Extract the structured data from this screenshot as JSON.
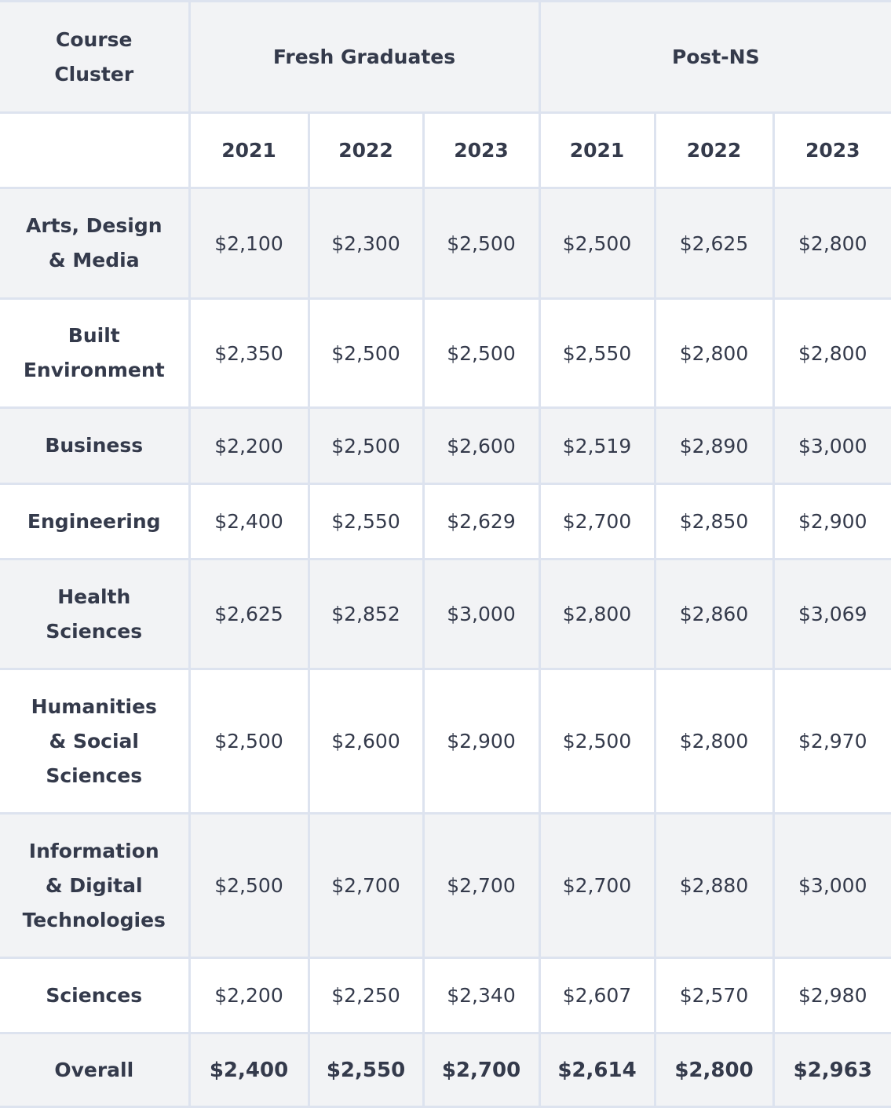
{
  "header": {
    "cluster_label": "Course\nCluster",
    "groups": [
      "Fresh Graduates",
      "Post-NS"
    ],
    "years": [
      "2021",
      "2022",
      "2023",
      "2021",
      "2022",
      "2023"
    ]
  },
  "rows": [
    {
      "cluster": "Arts, Design\n& Media",
      "values": [
        "$2,100",
        "$2,300",
        "$2,500",
        "$2,500",
        "$2,625",
        "$2,800"
      ]
    },
    {
      "cluster": "Built\nEnvironment",
      "values": [
        "$2,350",
        "$2,500",
        "$2,500",
        "$2,550",
        "$2,800",
        "$2,800"
      ]
    },
    {
      "cluster": "Business",
      "values": [
        "$2,200",
        "$2,500",
        "$2,600",
        "$2,519",
        "$2,890",
        "$3,000"
      ]
    },
    {
      "cluster": "Engineering",
      "values": [
        "$2,400",
        "$2,550",
        "$2,629",
        "$2,700",
        "$2,850",
        "$2,900"
      ]
    },
    {
      "cluster": "Health\nSciences",
      "values": [
        "$2,625",
        "$2,852",
        "$3,000",
        "$2,800",
        "$2,860",
        "$3,069"
      ]
    },
    {
      "cluster": "Humanities\n& Social\nSciences",
      "values": [
        "$2,500",
        "$2,600",
        "$2,900",
        "$2,500",
        "$2,800",
        "$2,970"
      ]
    },
    {
      "cluster": "Information\n& Digital\nTechnologies",
      "values": [
        "$2,500",
        "$2,700",
        "$2,700",
        "$2,700",
        "$2,880",
        "$3,000"
      ]
    },
    {
      "cluster": "Sciences",
      "values": [
        "$2,200",
        "$2,250",
        "$2,340",
        "$2,607",
        "$2,570",
        "$2,980"
      ]
    },
    {
      "cluster": "Overall",
      "values": [
        "$2,400",
        "$2,550",
        "$2,700",
        "$2,614",
        "$2,800",
        "$2,963"
      ]
    }
  ],
  "colors": {
    "text": "#343a4b",
    "border": "#dde3ef",
    "shade": "#f2f3f5"
  }
}
